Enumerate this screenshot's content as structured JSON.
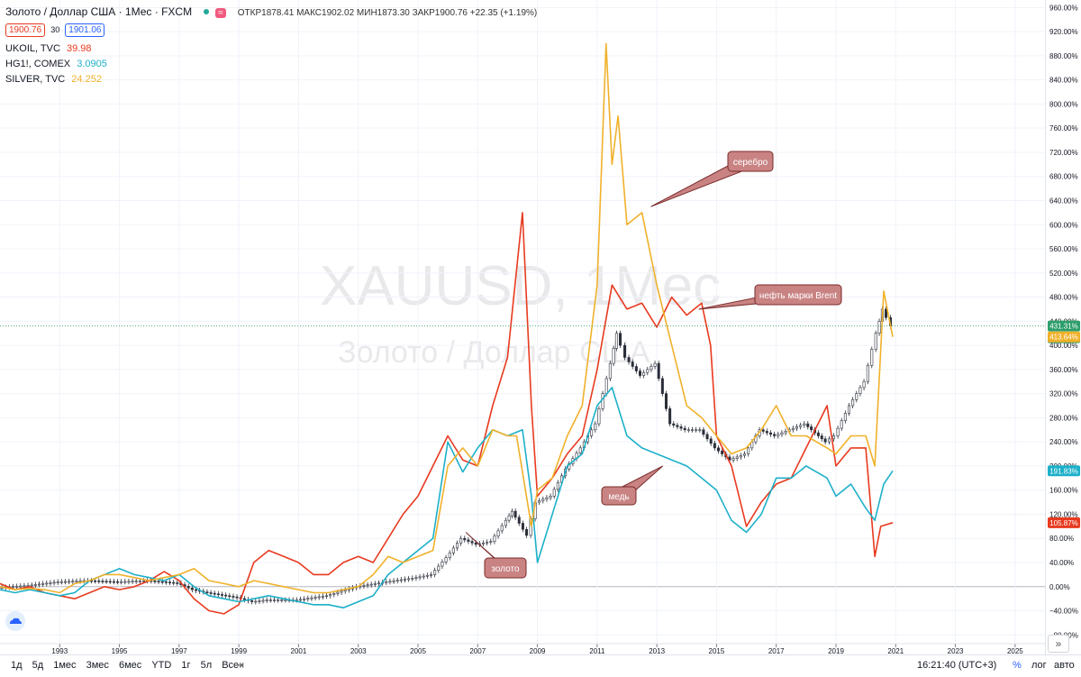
{
  "header": {
    "symbol": "Золото / Доллар США · 1Мес · FXCM",
    "ohlc": "ОТКР1878.41 МАКС1902.02 МИН1873.30 ЗАКР1900.76 +22.35 (+1.19%)",
    "bid": "1900.76",
    "spread": "30",
    "ask": "1901.06"
  },
  "legend": [
    {
      "name": "UKOIL, TVC",
      "value": "39.98",
      "color": "#e83a1f"
    },
    {
      "name": "HG1!, COMEX",
      "value": "3.0905",
      "color": "#1db0c9"
    },
    {
      "name": "SILVER, TVC",
      "value": "24.252",
      "color": "#f0b12a"
    }
  ],
  "watermark": {
    "line1": "XAUUSD, 1Мес",
    "line2": "Золото / Доллар США"
  },
  "annotations": [
    {
      "text": "серебро",
      "color": "#c98383"
    },
    {
      "text": "нефть марки Brent",
      "color": "#c98383"
    },
    {
      "text": "медь",
      "color": "#c98383"
    },
    {
      "text": "золото",
      "color": "#c98383"
    }
  ],
  "price_badges": [
    {
      "text": "431.31%",
      "color": "#2e9e6b"
    },
    {
      "text": "27d 9h",
      "color": "#2e9e6b"
    },
    {
      "text": "413.64%",
      "color": "#f0b12a"
    },
    {
      "text": "191.83%",
      "color": "#1db0c9"
    },
    {
      "text": "105.87%",
      "color": "#e83a1f"
    }
  ],
  "bottom_bar": {
    "timeframes": [
      "1д",
      "5д",
      "1мес",
      "3мес",
      "6мес",
      "YTD",
      "1г",
      "5л",
      "Все"
    ],
    "time": "16:21:40 (UTC+3)",
    "percent": "%",
    "log": "лог",
    "auto": "авто"
  },
  "chart_data": {
    "type": "line",
    "yunit": "%",
    "ylim": [
      -90,
      965
    ],
    "xlim": [
      1991.0,
      2026.0
    ],
    "yticks": [
      "960.00%",
      "920.00%",
      "880.00%",
      "840.00%",
      "800.00%",
      "760.00%",
      "720.00%",
      "680.00%",
      "640.00%",
      "600.00%",
      "560.00%",
      "520.00%",
      "480.00%",
      "440.00%",
      "400.00%",
      "360.00%",
      "320.00%",
      "280.00%",
      "240.00%",
      "200.00%",
      "160.00%",
      "120.00%",
      "80.00%",
      "40.00%",
      "0.00%",
      "−40.00%",
      "−80.00%"
    ],
    "xticks": [
      "1993",
      "1995",
      "1997",
      "1999",
      "2001",
      "2003",
      "2005",
      "2007",
      "2009",
      "2011",
      "2013",
      "2015",
      "2017",
      "2019",
      "2021",
      "2023",
      "2025"
    ],
    "grid": true,
    "series": [
      {
        "name": "XAUUSD",
        "color": "#2a2e39",
        "style": "candles",
        "x": [
          1991.0,
          1992.0,
          1993.0,
          1994.0,
          1995.0,
          1996.0,
          1997.0,
          1997.5,
          1998.0,
          1999.0,
          1999.5,
          2000.0,
          2001.0,
          2002.0,
          2003.0,
          2004.0,
          2005.0,
          2005.5,
          2006.0,
          2006.5,
          2007.0,
          2007.5,
          2008.0,
          2008.2,
          2008.7,
          2009.0,
          2009.5,
          2010.0,
          2010.5,
          2011.0,
          2011.5,
          2011.7,
          2012.0,
          2012.5,
          2013.0,
          2013.5,
          2014.0,
          2014.5,
          2015.0,
          2015.5,
          2016.0,
          2016.5,
          2017.0,
          2017.5,
          2018.0,
          2018.7,
          2019.0,
          2019.5,
          2020.0,
          2020.4,
          2020.6,
          2020.9
        ],
        "y": [
          -2,
          2,
          8,
          10,
          8,
          10,
          6,
          -5,
          -10,
          -18,
          -25,
          -22,
          -22,
          -15,
          0,
          8,
          15,
          20,
          48,
          80,
          70,
          75,
          110,
          125,
          85,
          140,
          150,
          195,
          230,
          270,
          370,
          420,
          380,
          350,
          370,
          270,
          260,
          260,
          230,
          210,
          220,
          260,
          250,
          260,
          270,
          240,
          250,
          300,
          340,
          420,
          460,
          432
        ]
      },
      {
        "name": "UKOIL, TVC",
        "color": "#e83a1f",
        "x": [
          1991.0,
          1991.5,
          1992.0,
          1992.5,
          1993.0,
          1993.5,
          1994.0,
          1994.5,
          1995.0,
          1995.5,
          1996.0,
          1996.5,
          1997.0,
          1997.5,
          1998.0,
          1998.5,
          1999.0,
          1999.5,
          2000.0,
          2000.5,
          2001.0,
          2001.5,
          2002.0,
          2002.5,
          2003.0,
          2003.5,
          2004.0,
          2004.5,
          2005.0,
          2005.5,
          2006.0,
          2006.5,
          2007.0,
          2007.5,
          2008.0,
          2008.5,
          2008.8,
          2009.0,
          2009.5,
          2010.0,
          2010.5,
          2011.0,
          2011.5,
          2012.0,
          2012.5,
          2013.0,
          2013.5,
          2014.0,
          2014.5,
          2014.8,
          2015.0,
          2015.5,
          2016.0,
          2016.5,
          2017.0,
          2017.5,
          2018.0,
          2018.7,
          2019.0,
          2019.5,
          2020.0,
          2020.3,
          2020.5,
          2020.9
        ],
        "y": [
          5,
          -5,
          0,
          -10,
          -15,
          -20,
          -10,
          0,
          -5,
          0,
          10,
          25,
          10,
          -20,
          -40,
          -45,
          -30,
          40,
          60,
          50,
          40,
          20,
          20,
          40,
          50,
          40,
          80,
          120,
          150,
          200,
          250,
          210,
          200,
          300,
          380,
          620,
          300,
          150,
          180,
          220,
          250,
          360,
          500,
          460,
          470,
          430,
          480,
          450,
          470,
          400,
          250,
          200,
          100,
          140,
          170,
          180,
          230,
          300,
          200,
          230,
          230,
          50,
          100,
          106
        ]
      },
      {
        "name": "HG1!, COMEX",
        "color": "#1db0c9",
        "x": [
          1991.0,
          1991.5,
          1992.0,
          1992.5,
          1993.0,
          1993.5,
          1994.0,
          1994.5,
          1995.0,
          1995.5,
          1996.0,
          1996.5,
          1997.0,
          1997.5,
          1998.0,
          1998.5,
          1999.0,
          1999.5,
          2000.0,
          2000.5,
          2001.0,
          2001.5,
          2002.0,
          2002.5,
          2003.0,
          2003.5,
          2004.0,
          2004.5,
          2005.0,
          2005.5,
          2006.0,
          2006.5,
          2007.0,
          2007.5,
          2008.0,
          2008.5,
          2008.8,
          2009.0,
          2009.5,
          2010.0,
          2010.5,
          2011.0,
          2011.5,
          2012.0,
          2012.5,
          2013.0,
          2013.5,
          2014.0,
          2014.5,
          2015.0,
          2015.5,
          2016.0,
          2016.5,
          2017.0,
          2017.5,
          2018.0,
          2018.7,
          2019.0,
          2019.5,
          2020.0,
          2020.3,
          2020.6,
          2020.9
        ],
        "y": [
          -5,
          -10,
          -5,
          -10,
          -15,
          -10,
          10,
          20,
          30,
          20,
          15,
          10,
          20,
          0,
          -15,
          -20,
          -25,
          -20,
          -15,
          -20,
          -25,
          -30,
          -30,
          -35,
          -25,
          -15,
          20,
          40,
          60,
          80,
          240,
          190,
          230,
          260,
          250,
          260,
          150,
          40,
          120,
          200,
          220,
          300,
          330,
          250,
          230,
          220,
          210,
          200,
          180,
          160,
          110,
          90,
          120,
          180,
          180,
          200,
          180,
          150,
          170,
          130,
          110,
          170,
          192
        ]
      },
      {
        "name": "SILVER, TVC",
        "color": "#f0b12a",
        "x": [
          1991.0,
          1991.5,
          1992.0,
          1992.5,
          1993.0,
          1993.5,
          1994.0,
          1994.5,
          1995.0,
          1995.5,
          1996.0,
          1996.5,
          1997.0,
          1997.5,
          1998.0,
          1998.5,
          1999.0,
          1999.5,
          2000.0,
          2000.5,
          2001.0,
          2001.5,
          2002.0,
          2002.5,
          2003.0,
          2003.5,
          2004.0,
          2004.5,
          2005.0,
          2005.5,
          2006.0,
          2006.5,
          2007.0,
          2007.5,
          2008.0,
          2008.3,
          2008.8,
          2009.0,
          2009.5,
          2010.0,
          2010.5,
          2011.0,
          2011.3,
          2011.5,
          2011.7,
          2012.0,
          2012.5,
          2013.0,
          2013.5,
          2014.0,
          2014.5,
          2015.0,
          2015.5,
          2016.0,
          2016.5,
          2017.0,
          2017.5,
          2018.0,
          2018.7,
          2019.0,
          2019.5,
          2020.0,
          2020.3,
          2020.6,
          2020.9
        ],
        "y": [
          0,
          -5,
          -3,
          -5,
          -10,
          5,
          10,
          20,
          20,
          15,
          10,
          15,
          20,
          30,
          10,
          5,
          0,
          10,
          5,
          0,
          -5,
          -10,
          -10,
          -5,
          0,
          20,
          50,
          40,
          50,
          60,
          200,
          230,
          200,
          260,
          250,
          250,
          100,
          160,
          180,
          250,
          300,
          500,
          900,
          700,
          780,
          600,
          620,
          500,
          400,
          300,
          280,
          250,
          220,
          230,
          260,
          300,
          250,
          250,
          230,
          220,
          250,
          250,
          200,
          490,
          414
        ]
      }
    ]
  }
}
